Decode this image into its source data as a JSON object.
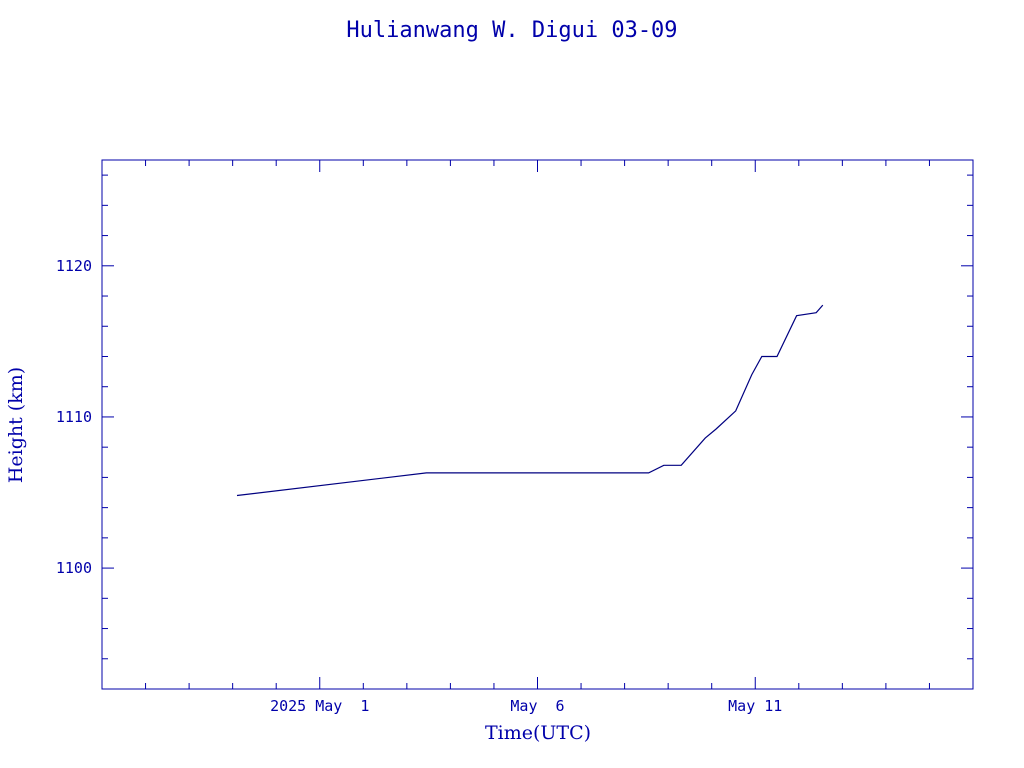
{
  "chart_data": {
    "type": "line",
    "title": "Hulianwang W. Digui 03-09",
    "xlabel": "Time(UTC)",
    "ylabel": "Height (km)",
    "x_unit": "days relative to 2025 May 1 00:00 UTC",
    "x_tick_labels": [
      {
        "x": 0,
        "label": "2025 May  1"
      },
      {
        "x": 5,
        "label": "May  6"
      },
      {
        "x": 10,
        "label": "May 11"
      }
    ],
    "xlim": [
      -5.0,
      15.0
    ],
    "ylim": [
      1092.0,
      1127.0
    ],
    "y_ticks": [
      1100,
      1110,
      1120
    ],
    "y_minor_step": 2,
    "x_minor_step": 1,
    "grid": false,
    "series": [
      {
        "name": "",
        "color": "#000080",
        "x": [
          -1.9,
          2.45,
          7.55,
          7.9,
          8.3,
          8.85,
          9.1,
          9.55,
          9.92,
          10.15,
          10.5,
          10.95,
          11.4,
          11.55
        ],
        "y": [
          1104.8,
          1106.3,
          1106.3,
          1106.8,
          1106.8,
          1108.6,
          1109.2,
          1110.4,
          1112.8,
          1114.0,
          1114.0,
          1116.7,
          1116.9,
          1117.4
        ]
      }
    ]
  }
}
